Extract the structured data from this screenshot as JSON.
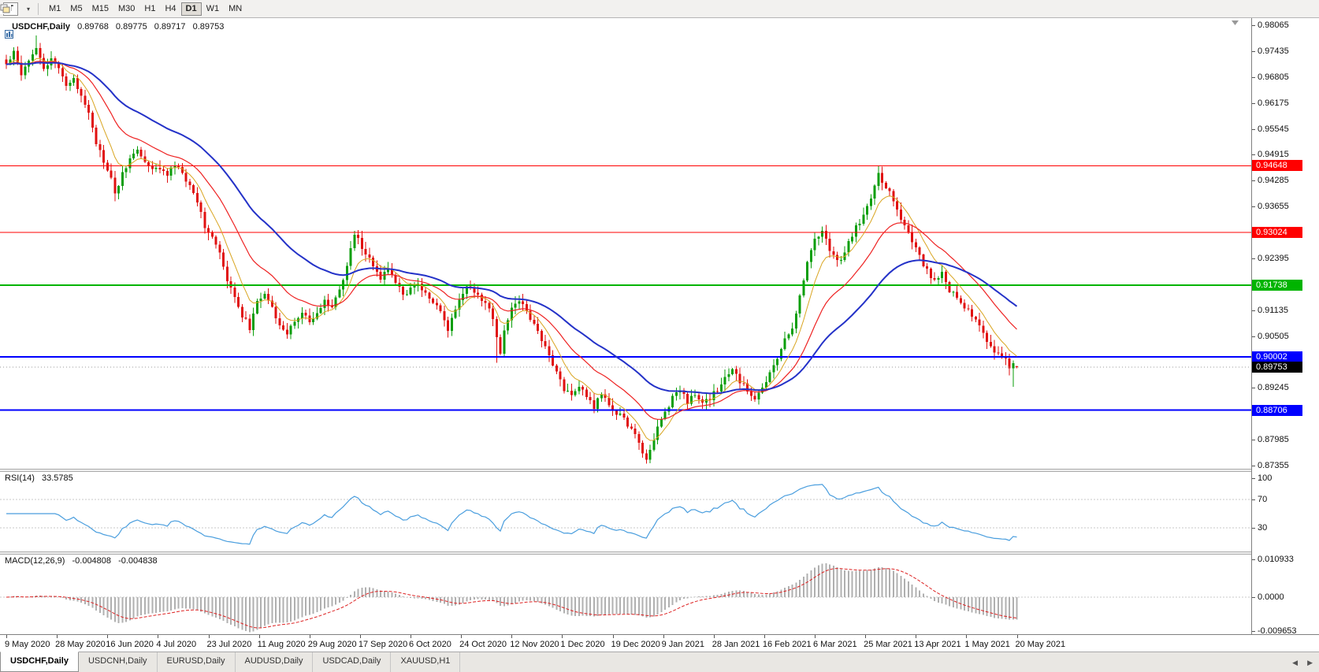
{
  "toolbar": {
    "chart_type_label": "T",
    "timeframes": [
      "M1",
      "M5",
      "M15",
      "M30",
      "H1",
      "H4",
      "D1",
      "W1",
      "MN"
    ],
    "active_timeframe": "D1"
  },
  "main_chart": {
    "title": "USDCHF,Daily",
    "open": "0.89768",
    "high": "0.89775",
    "low": "0.89717",
    "close": "0.89753"
  },
  "indicators": {
    "rsi": {
      "label": "RSI(14)",
      "value": "33.5785",
      "axis_labels": [
        "100",
        "70",
        "30"
      ]
    },
    "macd": {
      "label": "MACD(12,26,9)",
      "main_value": "-0.004808",
      "signal_value": "-0.004838",
      "axis_labels": [
        "0.010933",
        "0.0000",
        "-0.009653"
      ]
    }
  },
  "price_axis": {
    "labels": [
      "0.98065",
      "0.97435",
      "0.96805",
      "0.96175",
      "0.95545",
      "0.94915",
      "0.94285",
      "0.93655",
      "0.92395",
      "0.91135",
      "0.90505",
      "0.89245",
      "0.87985",
      "0.87355"
    ],
    "badges": [
      {
        "text": "0.94648",
        "color": "#ff0000"
      },
      {
        "text": "0.93024",
        "color": "#ff0000"
      },
      {
        "text": "0.91738",
        "color": "#00b400"
      },
      {
        "text": "0.90002",
        "color": "#0000ff"
      },
      {
        "text": "0.89753",
        "color": "#000000"
      },
      {
        "text": "0.88706",
        "color": "#0000ff"
      }
    ]
  },
  "tabs": {
    "items": [
      "USDCHF,Daily",
      "USDCNH,Daily",
      "EURUSD,Daily",
      "AUDUSD,Daily",
      "USDCAD,Daily",
      "XAUUSD,H1"
    ],
    "active": "USDCHF,Daily"
  },
  "chart_data": {
    "type": "candlestick",
    "symbol": "USDCHF",
    "period": "Daily",
    "bars": 271,
    "visible_range": {
      "price_min": 0.87355,
      "price_max": 0.98065,
      "first_date": "9 May 2020",
      "last_date": "20 May 2021"
    },
    "y_tick_step": 0.0063,
    "x_labels": [
      "9 May 2020",
      "28 May 2020",
      "16 Jun 2020",
      "4 Jul 2020",
      "23 Jul 2020",
      "11 Aug 2020",
      "29 Aug 2020",
      "17 Sep 2020",
      "6 Oct 2020",
      "24 Oct 2020",
      "12 Nov 2020",
      "1 Dec 2020",
      "19 Dec 2020",
      "9 Jan 2021",
      "28 Jan 2021",
      "16 Feb 2021",
      "6 Mar 2021",
      "25 Mar 2021",
      "13 Apr 2021",
      "1 May 2021",
      "20 May 2021"
    ],
    "close_anchors": [
      [
        0,
        0.971
      ],
      [
        2,
        0.9745
      ],
      [
        4,
        0.969
      ],
      [
        6,
        0.9725
      ],
      [
        8,
        0.9755
      ],
      [
        10,
        0.97
      ],
      [
        12,
        0.972
      ],
      [
        14,
        0.9708
      ],
      [
        16,
        0.966
      ],
      [
        18,
        0.9672
      ],
      [
        20,
        0.9635
      ],
      [
        22,
        0.96
      ],
      [
        24,
        0.952
      ],
      [
        26,
        0.9475
      ],
      [
        28,
        0.943
      ],
      [
        29,
        0.9395
      ],
      [
        31,
        0.9445
      ],
      [
        33,
        0.948
      ],
      [
        35,
        0.9505
      ],
      [
        37,
        0.9475
      ],
      [
        39,
        0.9452
      ],
      [
        41,
        0.9462
      ],
      [
        43,
        0.944
      ],
      [
        45,
        0.9468
      ],
      [
        47,
        0.9445
      ],
      [
        49,
        0.9415
      ],
      [
        51,
        0.938
      ],
      [
        53,
        0.932
      ],
      [
        55,
        0.929
      ],
      [
        57,
        0.925
      ],
      [
        59,
        0.918
      ],
      [
        61,
        0.915
      ],
      [
        63,
        0.91
      ],
      [
        65,
        0.9072
      ],
      [
        67,
        0.913
      ],
      [
        69,
        0.9158
      ],
      [
        71,
        0.912
      ],
      [
        73,
        0.9082
      ],
      [
        75,
        0.9052
      ],
      [
        77,
        0.909
      ],
      [
        79,
        0.9108
      ],
      [
        81,
        0.9082
      ],
      [
        83,
        0.91
      ],
      [
        85,
        0.9138
      ],
      [
        87,
        0.912
      ],
      [
        89,
        0.916
      ],
      [
        91,
        0.922
      ],
      [
        93,
        0.9298
      ],
      [
        94,
        0.9285
      ],
      [
        96,
        0.925
      ],
      [
        98,
        0.9222
      ],
      [
        100,
        0.9192
      ],
      [
        102,
        0.921
      ],
      [
        104,
        0.9182
      ],
      [
        106,
        0.9152
      ],
      [
        108,
        0.9162
      ],
      [
        110,
        0.918
      ],
      [
        112,
        0.9152
      ],
      [
        114,
        0.9132
      ],
      [
        116,
        0.911
      ],
      [
        118,
        0.9062
      ],
      [
        119,
        0.9092
      ],
      [
        121,
        0.914
      ],
      [
        123,
        0.9168
      ],
      [
        125,
        0.916
      ],
      [
        127,
        0.914
      ],
      [
        129,
        0.912
      ],
      [
        131,
        0.9052
      ],
      [
        132,
        0.9005
      ],
      [
        133,
        0.906
      ],
      [
        135,
        0.912
      ],
      [
        137,
        0.914
      ],
      [
        139,
        0.911
      ],
      [
        141,
        0.908
      ],
      [
        143,
        0.904
      ],
      [
        145,
        0.901
      ],
      [
        147,
        0.8962
      ],
      [
        149,
        0.8922
      ],
      [
        151,
        0.891
      ],
      [
        153,
        0.893
      ],
      [
        155,
        0.89
      ],
      [
        157,
        0.888
      ],
      [
        159,
        0.8908
      ],
      [
        161,
        0.888
      ],
      [
        163,
        0.8862
      ],
      [
        165,
        0.885
      ],
      [
        167,
        0.8822
      ],
      [
        169,
        0.879
      ],
      [
        171,
        0.8748
      ],
      [
        172,
        0.8772
      ],
      [
        174,
        0.883
      ],
      [
        176,
        0.8868
      ],
      [
        178,
        0.89
      ],
      [
        180,
        0.892
      ],
      [
        182,
        0.8892
      ],
      [
        184,
        0.891
      ],
      [
        186,
        0.8882
      ],
      [
        188,
        0.89
      ],
      [
        190,
        0.892
      ],
      [
        192,
        0.895
      ],
      [
        194,
        0.8968
      ],
      [
        196,
        0.894
      ],
      [
        198,
        0.892
      ],
      [
        200,
        0.8902
      ],
      [
        202,
        0.892
      ],
      [
        204,
        0.8958
      ],
      [
        206,
        0.9
      ],
      [
        208,
        0.904
      ],
      [
        210,
        0.9072
      ],
      [
        212,
        0.915
      ],
      [
        214,
        0.9228
      ],
      [
        216,
        0.9288
      ],
      [
        218,
        0.9308
      ],
      [
        220,
        0.9262
      ],
      [
        222,
        0.9232
      ],
      [
        224,
        0.9252
      ],
      [
        226,
        0.9298
      ],
      [
        228,
        0.933
      ],
      [
        230,
        0.936
      ],
      [
        232,
        0.9418
      ],
      [
        233,
        0.9448
      ],
      [
        234,
        0.9428
      ],
      [
        236,
        0.94
      ],
      [
        238,
        0.936
      ],
      [
        240,
        0.932
      ],
      [
        242,
        0.928
      ],
      [
        244,
        0.9242
      ],
      [
        246,
        0.921
      ],
      [
        248,
        0.9182
      ],
      [
        250,
        0.92
      ],
      [
        252,
        0.9162
      ],
      [
        254,
        0.914
      ],
      [
        256,
        0.912
      ],
      [
        258,
        0.91
      ],
      [
        260,
        0.9072
      ],
      [
        262,
        0.904
      ],
      [
        264,
        0.9012
      ],
      [
        266,
        0.9
      ],
      [
        267,
        0.8996
      ],
      [
        268,
        0.8978
      ],
      [
        269,
        0.899
      ],
      [
        270,
        0.89753
      ]
    ],
    "last_bar": {
      "open": 0.89768,
      "high": 0.89775,
      "low": 0.89717,
      "close": 0.89753
    },
    "wick_high_overrides": {
      "8": 0.9782,
      "93": 0.9306,
      "233": 0.94646
    },
    "wick_low_overrides": {
      "29": 0.9378,
      "131": 0.8986,
      "171": 0.874,
      "269": 0.8927
    },
    "candle_colors": {
      "up": "#0a9e0a",
      "down": "#e01010"
    },
    "moving_averages": [
      {
        "name": "ma-fast",
        "period": 8,
        "color": "#d9a521",
        "width": 1
      },
      {
        "name": "ma-mid",
        "period": 21,
        "color": "#ee2222",
        "width": 1.2
      },
      {
        "name": "ma-slow",
        "period": 45,
        "color": "#2432c8",
        "width": 2
      }
    ],
    "horizontal_lines": [
      {
        "price": 0.94648,
        "color": "#ff0000",
        "width": 1
      },
      {
        "price": 0.93024,
        "color": "#ff0000",
        "width": 1
      },
      {
        "price": 0.91738,
        "color": "#00b400",
        "width": 2
      },
      {
        "price": 0.90002,
        "color": "#0000ff",
        "width": 2
      },
      {
        "price": 0.88706,
        "color": "#0000ff",
        "width": 2
      }
    ],
    "current_price": 0.89753,
    "rsi": {
      "type": "line",
      "period": 14,
      "color": "#4a9ede",
      "current": 33.5785,
      "levels": [
        70,
        30
      ],
      "range": [
        0,
        100
      ]
    },
    "macd": {
      "type": "histogram+signal",
      "fast": 12,
      "slow": 26,
      "signal_period": 9,
      "histogram_color": "#b0b0b0",
      "signal_color": "#dd2222",
      "current_main": -0.004808,
      "current_signal": -0.004838,
      "range": [
        -0.009653,
        0.010933
      ]
    }
  }
}
